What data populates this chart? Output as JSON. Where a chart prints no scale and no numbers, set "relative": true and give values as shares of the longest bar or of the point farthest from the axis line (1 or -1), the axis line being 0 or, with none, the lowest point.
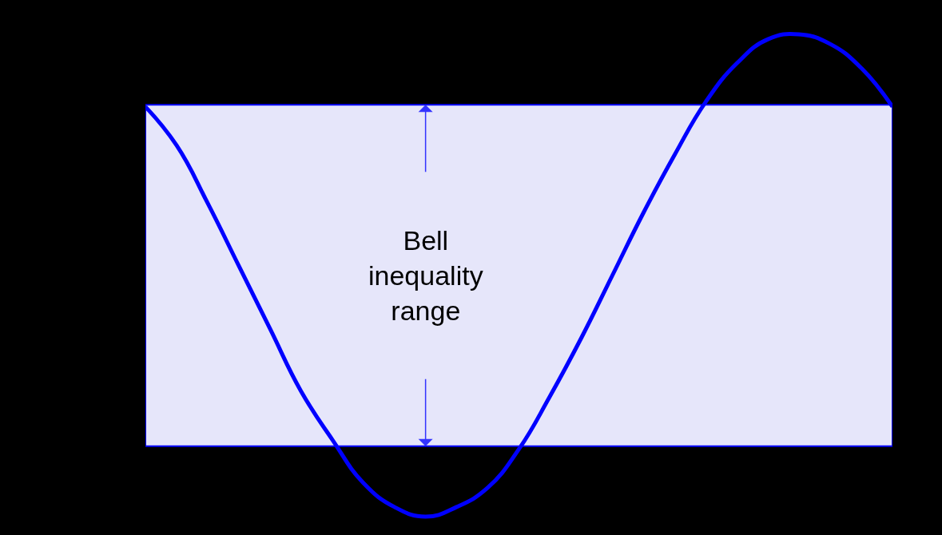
{
  "chart_data": {
    "type": "line",
    "relative": true,
    "marker": "none",
    "line_style": "solid",
    "categories": [
      null,
      null,
      null,
      null,
      null,
      null,
      null,
      null,
      null,
      null,
      null,
      null,
      null,
      null,
      null,
      null,
      null,
      null,
      null,
      null,
      null,
      null,
      null,
      null,
      null
    ],
    "series": [
      {
        "color": "#0000ff",
        "values": [
          0.85,
          0.77,
          0.65,
          0.52,
          0.39,
          0.26,
          0.16,
          0.07,
          0.02,
          0,
          0.02,
          0.06,
          0.14,
          0.25,
          0.37,
          0.5,
          0.63,
          0.75,
          0.86,
          0.94,
          0.99,
          1.0,
          0.98,
          0.93,
          0.85
        ]
      }
    ],
    "bands": [
      {
        "axis": "y",
        "from": 0.146,
        "to": 0.854,
        "color": "#e6e6fa",
        "label": "Bell inequality range"
      }
    ]
  }
}
